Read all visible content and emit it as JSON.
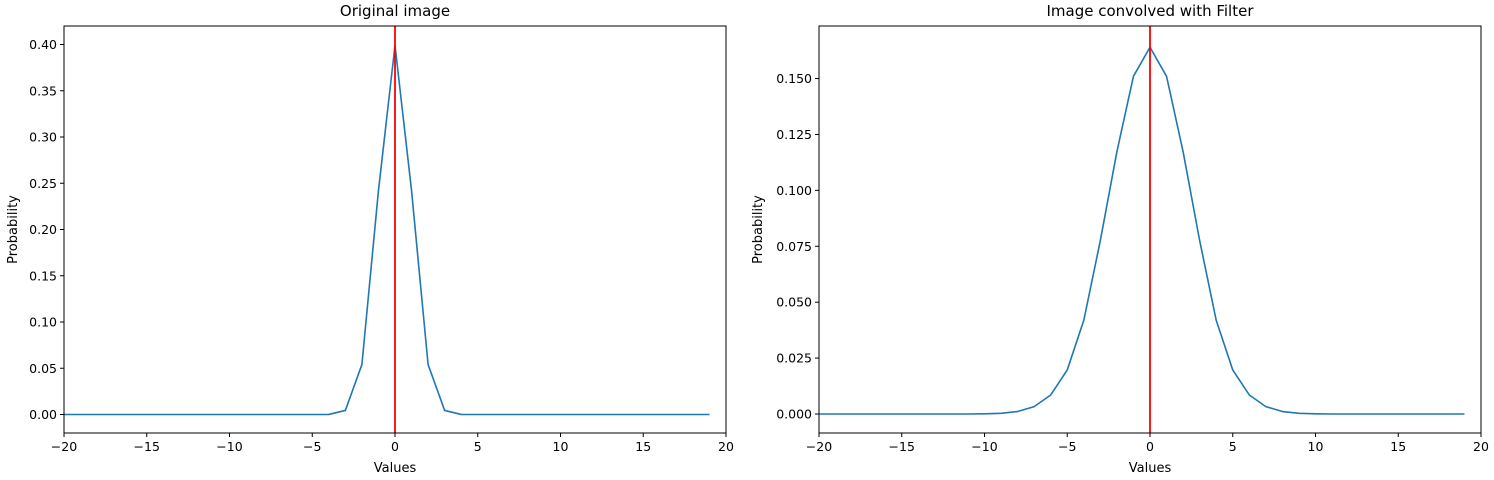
{
  "chart_data": [
    {
      "type": "line",
      "title": "Original image",
      "xlabel": "Values",
      "ylabel": "Probability",
      "xlim": [
        -20,
        20
      ],
      "ylim": [
        -0.02,
        0.42
      ],
      "xticks": [
        -20,
        -15,
        -10,
        -5,
        0,
        5,
        10,
        15,
        20
      ],
      "xtick_labels": [
        "−20",
        "−15",
        "−10",
        "−5",
        "0",
        "5",
        "10",
        "15",
        "20"
      ],
      "yticks": [
        0.0,
        0.05,
        0.1,
        0.15,
        0.2,
        0.25,
        0.3,
        0.35,
        0.4
      ],
      "ytick_labels": [
        "0.00",
        "0.05",
        "0.10",
        "0.15",
        "0.20",
        "0.25",
        "0.30",
        "0.35",
        "0.40"
      ],
      "grid": false,
      "series": [
        {
          "color": "#1f77b4",
          "x": [
            -20,
            -19,
            -18,
            -17,
            -16,
            -15,
            -14,
            -13,
            -12,
            -11,
            -10,
            -9,
            -8,
            -7,
            -6,
            -5,
            -4,
            -3,
            -2,
            -1,
            0,
            1,
            2,
            3,
            4,
            5,
            6,
            7,
            8,
            9,
            10,
            11,
            12,
            13,
            14,
            15,
            16,
            17,
            18,
            19
          ],
          "y": [
            0,
            0,
            0,
            0,
            0,
            0,
            0,
            0,
            0,
            0,
            0,
            0,
            0,
            0,
            0,
            0,
            0.0001,
            0.0044,
            0.054,
            0.242,
            0.399,
            0.242,
            0.054,
            0.0044,
            0.0001,
            0,
            0,
            0,
            0,
            0,
            0,
            0,
            0,
            0,
            0,
            0,
            0,
            0,
            0,
            0
          ]
        }
      ],
      "vlines": [
        {
          "x": 0,
          "color": "#ff0000"
        }
      ]
    },
    {
      "type": "line",
      "title": "Image convolved with Filter",
      "xlabel": "Values",
      "ylabel": "Probability",
      "xlim": [
        -20,
        20
      ],
      "ylim": [
        -0.0085,
        0.1735
      ],
      "xticks": [
        -20,
        -15,
        -10,
        -5,
        0,
        5,
        10,
        15,
        20
      ],
      "xtick_labels": [
        "−20",
        "−15",
        "−10",
        "−5",
        "0",
        "5",
        "10",
        "15",
        "20"
      ],
      "yticks": [
        0.0,
        0.025,
        0.05,
        0.075,
        0.1,
        0.125,
        0.15
      ],
      "ytick_labels": [
        "0.000",
        "0.025",
        "0.050",
        "0.075",
        "0.100",
        "0.125",
        "0.150"
      ],
      "grid": false,
      "series": [
        {
          "color": "#1f77b4",
          "x": [
            -20,
            -19,
            -18,
            -17,
            -16,
            -15,
            -14,
            -13,
            -12,
            -11,
            -10,
            -9,
            -8,
            -7,
            -6,
            -5,
            -4,
            -3,
            -2,
            -1,
            0,
            1,
            2,
            3,
            4,
            5,
            6,
            7,
            8,
            9,
            10,
            11,
            12,
            13,
            14,
            15,
            16,
            17,
            18,
            19
          ],
          "y": [
            0,
            0,
            0,
            0,
            0,
            0,
            0,
            0,
            0,
            0,
            0.0001,
            0.0003,
            0.0011,
            0.0033,
            0.0085,
            0.0197,
            0.0419,
            0.0776,
            0.1173,
            0.151,
            0.164,
            0.151,
            0.1173,
            0.0776,
            0.0419,
            0.0197,
            0.0085,
            0.0033,
            0.0011,
            0.0003,
            0.0001,
            0,
            0,
            0,
            0,
            0,
            0,
            0,
            0,
            0
          ]
        }
      ],
      "vlines": [
        {
          "x": 0,
          "color": "#ff0000"
        }
      ]
    }
  ]
}
